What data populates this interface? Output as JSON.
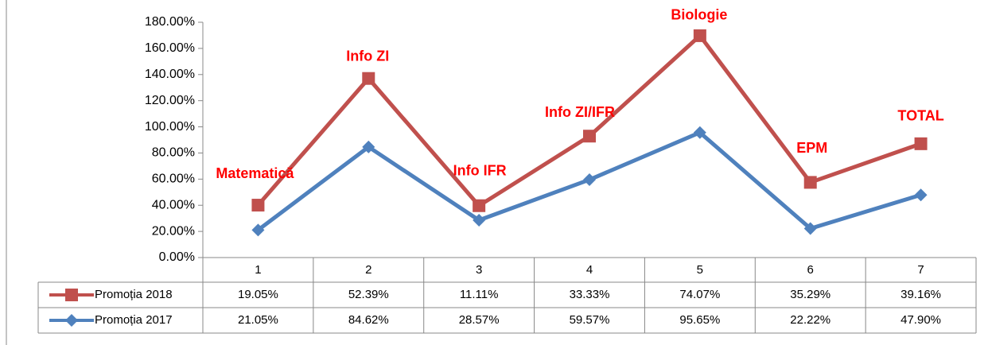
{
  "chart_data": {
    "type": "line",
    "stacked": true,
    "categories": [
      "1",
      "2",
      "3",
      "4",
      "5",
      "6",
      "7"
    ],
    "annotations": [
      "Matematică",
      "Info ZI",
      "Info IFR",
      "Info ZI/IFR",
      "Biologie",
      "EPM",
      "TOTAL"
    ],
    "series": [
      {
        "name": "Promoția 2017",
        "color": "#4f81bd",
        "marker": "diamond",
        "values": [
          21.05,
          84.62,
          28.57,
          59.57,
          95.65,
          22.22,
          47.9
        ],
        "value_labels": [
          "21.05%",
          "84.62%",
          "28.57%",
          "59.57%",
          "95.65%",
          "22.22%",
          "47.90%"
        ]
      },
      {
        "name": "Promoția 2018",
        "color": "#c0504d",
        "marker": "square",
        "values": [
          19.05,
          52.39,
          11.11,
          33.33,
          74.07,
          35.29,
          39.16
        ],
        "value_labels": [
          "19.05%",
          "52.39%",
          "11.11%",
          "33.33%",
          "74.07%",
          "35.29%",
          "39.16%"
        ]
      }
    ],
    "ylim": [
      0,
      180
    ],
    "yticks": [
      {
        "value": 0,
        "label": "0.00%"
      },
      {
        "value": 20,
        "label": "20.00%"
      },
      {
        "value": 40,
        "label": "40.00%"
      },
      {
        "value": 60,
        "label": "60.00%"
      },
      {
        "value": 80,
        "label": "80.00%"
      },
      {
        "value": 100,
        "label": "100.00%"
      },
      {
        "value": 120,
        "label": "120.00%"
      },
      {
        "value": 140,
        "label": "140.00%"
      },
      {
        "value": 160,
        "label": "160.00%"
      },
      {
        "value": 180,
        "label": "180.00%"
      }
    ],
    "data_table": true,
    "grid": false
  }
}
